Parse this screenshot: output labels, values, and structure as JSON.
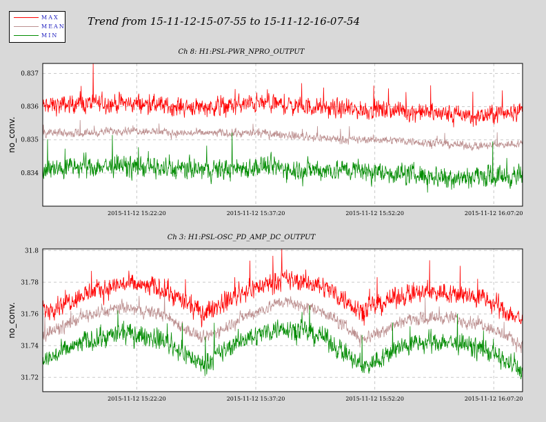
{
  "title": "Trend from 15-11-12-15-07-55 to 15-11-12-16-07-54",
  "legend": [
    {
      "label": "MAX",
      "color": "#ff0000"
    },
    {
      "label": "MEAN",
      "color": "#bc8f8f"
    },
    {
      "label": "MIN",
      "color": "#008b00"
    }
  ],
  "chart_data": [
    {
      "type": "line",
      "title": "Ch 8: H1:PSL-PWR_NPRO_OUTPUT",
      "ylabel": "no_conv.",
      "x_ticks": [
        "2015-11-12 15:22:20",
        "2015-11-12 15:37:20",
        "2015-11-12 15:52:20",
        "2015-11-12 16:07:20"
      ],
      "y_ticks": [
        "0.837",
        "0.836",
        "0.835",
        "0.834"
      ],
      "ylim": [
        0.833,
        0.8373
      ],
      "x_fraction_range": [
        0,
        1
      ],
      "series": [
        {
          "name": "MAX",
          "color": "#ff0000",
          "baseline": [
            0.836,
            0.8361,
            0.8361,
            0.836,
            0.836,
            0.8361,
            0.836,
            0.8359,
            0.8359,
            0.8358,
            0.8357,
            0.8359
          ],
          "noise": 0.00035
        },
        {
          "name": "MEAN",
          "color": "#bc8f8f",
          "baseline": [
            0.8352,
            0.8352,
            0.8353,
            0.8352,
            0.8352,
            0.8352,
            0.8351,
            0.835,
            0.835,
            0.8349,
            0.8348,
            0.8349
          ],
          "noise": 0.00015
        },
        {
          "name": "MIN",
          "color": "#008b00",
          "baseline": [
            0.8341,
            0.8342,
            0.8342,
            0.8341,
            0.8341,
            0.8342,
            0.8341,
            0.8341,
            0.834,
            0.8339,
            0.8339,
            0.8339
          ],
          "noise": 0.0004
        }
      ]
    },
    {
      "type": "line",
      "title": "Ch 3: H1:PSL-OSC_PD_AMP_DC_OUTPUT",
      "ylabel": "no_conv.",
      "x_ticks": [
        "2015-11-12 15:22:20",
        "2015-11-12 15:37:20",
        "2015-11-12 15:52:20",
        "2015-11-12 16:07:20"
      ],
      "y_ticks": [
        "31.8",
        "31.78",
        "31.76",
        "31.74",
        "31.72"
      ],
      "ylim": [
        31.711,
        31.801
      ],
      "series": [
        {
          "name": "MAX",
          "color": "#ff0000",
          "baseline": [
            31.762,
            31.772,
            31.779,
            31.776,
            31.76,
            31.774,
            31.782,
            31.778,
            31.762,
            31.772,
            31.774,
            31.77,
            31.756
          ],
          "noise": 0.008
        },
        {
          "name": "MEAN",
          "color": "#bc8f8f",
          "baseline": [
            31.746,
            31.758,
            31.764,
            31.76,
            31.744,
            31.758,
            31.768,
            31.762,
            31.744,
            31.756,
            31.758,
            31.754,
            31.74
          ],
          "noise": 0.005
        },
        {
          "name": "MIN",
          "color": "#008b00",
          "baseline": [
            31.73,
            31.742,
            31.748,
            31.744,
            31.728,
            31.744,
            31.752,
            31.746,
            31.726,
            31.74,
            31.743,
            31.738,
            31.724
          ],
          "noise": 0.008
        }
      ]
    }
  ]
}
